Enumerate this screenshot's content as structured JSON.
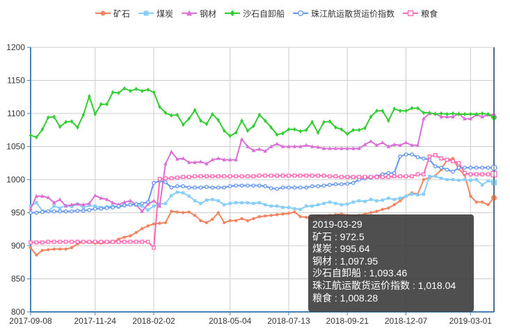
{
  "chart_data": {
    "type": "line",
    "title": "",
    "xlabel": "",
    "ylabel": "",
    "ylim": [
      800,
      1200
    ],
    "yticks": [
      800,
      850,
      900,
      950,
      1000,
      1050,
      1100,
      1150,
      1200
    ],
    "x_tick_labels": [
      "2017-09-08",
      "2017-11-24",
      "2018-02-02",
      "2018-05-04",
      "2018-07-13",
      "2018-09-21",
      "2018-12-07",
      "2019-03-01"
    ],
    "x_tick_indices": [
      0,
      11,
      21,
      34,
      44,
      54,
      64,
      75
    ],
    "num_points": 80,
    "grid": true,
    "legend_position": "top-center",
    "series": [
      {
        "name": "矿石",
        "color": "#f4845f",
        "marker": "circle-filled",
        "values": [
          897,
          886,
          893,
          894,
          895,
          895,
          895,
          897,
          903,
          906,
          905,
          904,
          904,
          905,
          905,
          910,
          913,
          915,
          920,
          926,
          930,
          933,
          934,
          935,
          952,
          951,
          950,
          951,
          946,
          938,
          935,
          940,
          950,
          935,
          938,
          938,
          941,
          938,
          941,
          944,
          945,
          946,
          947,
          948,
          949,
          951,
          944,
          943,
          941,
          945,
          944,
          946,
          947,
          948,
          946,
          945,
          946,
          948,
          950,
          952,
          955,
          957,
          962,
          968,
          975,
          980,
          978,
          1000,
          1003,
          1006,
          1015,
          1030,
          1032,
          1016,
          1007,
          975,
          966,
          966,
          962,
          972.5
        ]
      },
      {
        "name": "煤炭",
        "color": "#87cefa",
        "marker": "square-filled",
        "values": [
          960,
          965,
          953,
          952,
          960,
          957,
          961,
          959,
          963,
          958,
          961,
          960,
          958,
          959,
          960,
          958,
          961,
          962,
          961,
          960,
          954,
          960,
          963,
          964,
          976,
          981,
          980,
          975,
          968,
          964,
          969,
          970,
          968,
          962,
          964,
          965,
          965,
          965,
          964,
          965,
          962,
          960,
          960,
          958,
          958,
          956,
          955,
          960,
          960,
          962,
          964,
          966,
          964,
          962,
          963,
          966,
          968,
          967,
          970,
          968,
          969,
          972,
          970,
          972,
          975,
          978,
          977,
          978,
          1005,
          1005,
          1002,
          1000,
          1000,
          999,
          1000,
          999,
          1000,
          992,
          998,
          995.64
        ]
      },
      {
        "name": "钢材",
        "color": "#da70d6",
        "marker": "triangle-filled",
        "values": [
          956,
          975,
          975,
          973,
          965,
          970,
          960,
          962,
          963,
          962,
          964,
          976,
          972,
          970,
          965,
          962,
          966,
          968,
          962,
          952,
          963,
          968,
          960,
          1024,
          1042,
          1031,
          1032,
          1026,
          1026,
          1027,
          1024,
          1030,
          1032,
          1030,
          1030,
          1030,
          1061,
          1050,
          1044,
          1046,
          1043,
          1050,
          1054,
          1050,
          1050,
          1050,
          1050,
          1052,
          1050,
          1049,
          1047,
          1047,
          1047,
          1047,
          1047,
          1047,
          1047,
          1053,
          1058,
          1052,
          1056,
          1050,
          1053,
          1052,
          1056,
          1052,
          1052,
          1092,
          1100,
          1100,
          1095,
          1095,
          1095,
          1100,
          1092,
          1092,
          1098,
          1095,
          1098,
          1097.95
        ]
      },
      {
        "name": "沙石自卸船",
        "color": "#32cd32",
        "marker": "diamond-filled",
        "values": [
          1067,
          1064,
          1076,
          1094,
          1095,
          1080,
          1087,
          1088,
          1079,
          1098,
          1126,
          1099,
          1114,
          1114,
          1132,
          1131,
          1138,
          1134,
          1137,
          1134,
          1136,
          1132,
          1110,
          1101,
          1097,
          1098,
          1083,
          1092,
          1105,
          1089,
          1084,
          1099,
          1090,
          1074,
          1066,
          1071,
          1089,
          1074,
          1081,
          1098,
          1089,
          1079,
          1068,
          1070,
          1076,
          1076,
          1073,
          1075,
          1087,
          1071,
          1087,
          1088,
          1079,
          1076,
          1069,
          1075,
          1075,
          1078,
          1095,
          1104,
          1104,
          1089,
          1107,
          1104,
          1104,
          1108,
          1108,
          1101,
          1101,
          1099,
          1100,
          1099,
          1100,
          1099,
          1099,
          1099,
          1099,
          1100,
          1099,
          1093.46
        ]
      },
      {
        "name": "珠江航运散货运价指数",
        "color": "#6495ed",
        "marker": "circle-hollow",
        "values": [
          950,
          950,
          951,
          952,
          952,
          952,
          952,
          952,
          953,
          953,
          954,
          956,
          956,
          957,
          958,
          960,
          961,
          962,
          963,
          964,
          966,
          995,
          998,
          996,
          988,
          990,
          990,
          988,
          988,
          988,
          989,
          988,
          988,
          988,
          990,
          991,
          991,
          991,
          991,
          991,
          990,
          987,
          986,
          988,
          988,
          988,
          988,
          988,
          990,
          990,
          991,
          992,
          993,
          993,
          994,
          995,
          1000,
          1002,
          1003,
          1005,
          1008,
          1010,
          1010,
          1035,
          1038,
          1038,
          1034,
          1032,
          1030,
          1020,
          1018,
          1015,
          1012,
          1018,
          1018.04,
          1018,
          1018,
          1018,
          1018,
          1018.04
        ]
      },
      {
        "name": "粮食",
        "color": "#ff69b4",
        "marker": "square-hollow",
        "values": [
          905,
          905,
          905,
          906,
          906,
          906,
          906,
          906,
          906,
          906,
          906,
          906,
          906,
          906,
          906,
          906,
          906,
          906,
          906,
          906,
          906,
          897,
          1001,
          1002,
          1002,
          1003,
          1004,
          1004,
          1005,
          1005,
          1005,
          1005,
          1005,
          1005,
          1005,
          1005,
          1005,
          1005,
          1005,
          1006,
          1006,
          1006,
          1006,
          1006,
          1006,
          1006,
          1006,
          1006,
          1006,
          1006,
          1006,
          1005,
          1005,
          1004,
          1004,
          1004,
          1004,
          1004,
          1004,
          1004,
          1004,
          1004,
          1005,
          1005,
          1005,
          1005,
          1008,
          1008,
          1035,
          1037,
          1032,
          1030,
          1028,
          1025,
          1010,
          1008,
          1008,
          1008,
          1008,
          1008.28
        ]
      }
    ]
  },
  "tooltip": {
    "date": "2019-03-29",
    "rows": [
      "矿石 : 972.5",
      "煤炭 : 995.64",
      "钢材 : 1,097.95",
      "沙石自卸船 : 1,093.46",
      "珠江航运散货运价指数 : 1,018.04",
      "粮食 : 1,008.28"
    ]
  }
}
